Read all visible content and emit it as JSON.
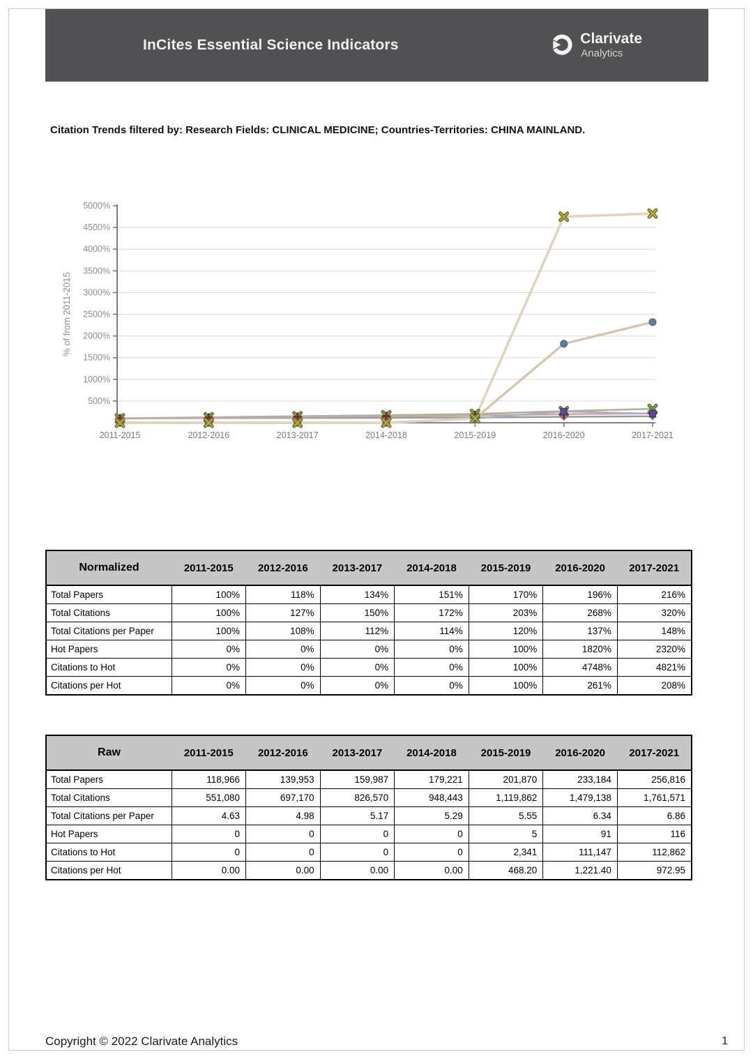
{
  "header": {
    "title": "InCites Essential Science Indicators",
    "brand_name": "Clarivate",
    "brand_sub": "Analytics",
    "bar_color": "#515052"
  },
  "filter_line": "Citation Trends filtered by:  Research Fields: CLINICAL MEDICINE;  Countries-Territories: CHINA MAINLAND.",
  "chart_data": {
    "type": "line",
    "title": "",
    "xlabel": "",
    "ylabel": "% of from 2011-2015",
    "ylim": [
      0,
      5000
    ],
    "ytick_step": 500,
    "ytick_suffix": "%",
    "grid": true,
    "legend_position": "none",
    "categories": [
      "2011-2015",
      "2012-2016",
      "2013-2017",
      "2014-2018",
      "2015-2019",
      "2016-2020",
      "2017-2021"
    ],
    "series": [
      {
        "name": "Total Citations per Paper",
        "values": [
          100,
          108,
          112,
          114,
          120,
          137,
          148
        ],
        "line_color": "#9a9a9a",
        "marker": "diamond",
        "marker_color": "#8d8d8d",
        "marker_edge": "#6e6e6e",
        "line_width": 2.5
      },
      {
        "name": "Total Citations",
        "values": [
          100,
          127,
          150,
          172,
          203,
          268,
          320
        ],
        "line_color": "#a9b295",
        "marker": "x",
        "marker_color": "#7d9b4e",
        "marker_edge": "#55703a",
        "line_width": 2.5
      },
      {
        "name": "Total Papers",
        "values": [
          100,
          118,
          134,
          151,
          170,
          196,
          216
        ],
        "line_color": "#c4a9a4",
        "marker": "plus",
        "marker_color": "#7b2a28",
        "marker_edge": "#5c1f1e",
        "line_width": 2.5
      },
      {
        "name": "Citations per Hot",
        "values": [
          0,
          0,
          0,
          0,
          100,
          261,
          208
        ],
        "line_color": "#b3a9c6",
        "marker": "square",
        "marker_color": "#5b4a99",
        "marker_edge": "#40346e",
        "line_width": 2.5
      },
      {
        "name": "Hot Papers",
        "values": [
          0,
          0,
          0,
          0,
          100,
          1820,
          2320
        ],
        "line_color": "#d5c6ae",
        "marker": "circle",
        "marker_color": "#5f7d95",
        "marker_edge": "#4a657b",
        "line_width": 3.5
      },
      {
        "name": "Citations to Hot",
        "values": [
          0,
          0,
          0,
          0,
          100,
          4748,
          4821
        ],
        "line_color": "#ded3bd",
        "marker": "x",
        "marker_color": "#b3a83c",
        "marker_edge": "#6f642a",
        "line_width": 3.5
      }
    ],
    "axis_color": "#707070",
    "grid_color": "#d9d9d9",
    "tick_label_color": "#8c8c8c"
  },
  "tables": [
    {
      "title": "Normalized",
      "columns": [
        "2011-2015",
        "2012-2016",
        "2013-2017",
        "2014-2018",
        "2015-2019",
        "2016-2020",
        "2017-2021"
      ],
      "rows": [
        {
          "label": "Total Papers",
          "values": [
            "100%",
            "118%",
            "134%",
            "151%",
            "170%",
            "196%",
            "216%"
          ]
        },
        {
          "label": "Total Citations",
          "values": [
            "100%",
            "127%",
            "150%",
            "172%",
            "203%",
            "268%",
            "320%"
          ]
        },
        {
          "label": "Total Citations per Paper",
          "values": [
            "100%",
            "108%",
            "112%",
            "114%",
            "120%",
            "137%",
            "148%"
          ]
        },
        {
          "label": "Hot Papers",
          "values": [
            "0%",
            "0%",
            "0%",
            "0%",
            "100%",
            "1820%",
            "2320%"
          ]
        },
        {
          "label": "Citations to Hot",
          "values": [
            "0%",
            "0%",
            "0%",
            "0%",
            "100%",
            "4748%",
            "4821%"
          ]
        },
        {
          "label": "Citations per Hot",
          "values": [
            "0%",
            "0%",
            "0%",
            "0%",
            "100%",
            "261%",
            "208%"
          ]
        }
      ]
    },
    {
      "title": "Raw",
      "columns": [
        "2011-2015",
        "2012-2016",
        "2013-2017",
        "2014-2018",
        "2015-2019",
        "2016-2020",
        "2017-2021"
      ],
      "rows": [
        {
          "label": "Total Papers",
          "values": [
            "118,966",
            "139,953",
            "159,987",
            "179,221",
            "201,870",
            "233,184",
            "256,816"
          ]
        },
        {
          "label": "Total Citations",
          "values": [
            "551,080",
            "697,170",
            "826,570",
            "948,443",
            "1,119,862",
            "1,479,138",
            "1,761,571"
          ]
        },
        {
          "label": "Total Citations per Paper",
          "values": [
            "4.63",
            "4.98",
            "5.17",
            "5.29",
            "5.55",
            "6.34",
            "6.86"
          ]
        },
        {
          "label": "Hot Papers",
          "values": [
            "0",
            "0",
            "0",
            "0",
            "5",
            "91",
            "116"
          ]
        },
        {
          "label": "Citations to Hot",
          "values": [
            "0",
            "0",
            "0",
            "0",
            "2,341",
            "111,147",
            "112,862"
          ]
        },
        {
          "label": "Citations per Hot",
          "values": [
            "0.00",
            "0.00",
            "0.00",
            "0.00",
            "468.20",
            "1,221.40",
            "972.95"
          ]
        }
      ]
    }
  ],
  "footer": {
    "copyright": "Copyright © 2022 Clarivate Analytics",
    "page_number": "1"
  }
}
